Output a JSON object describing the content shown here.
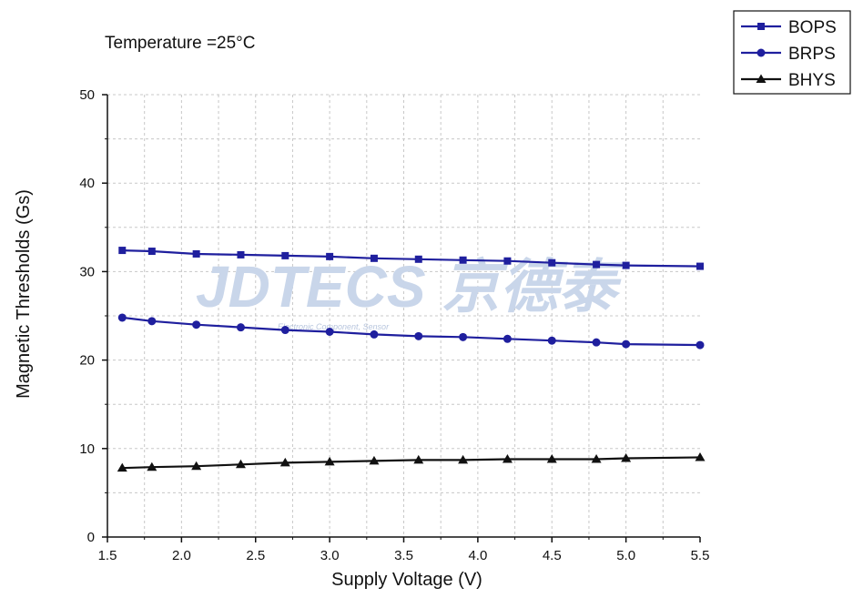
{
  "chart_data": {
    "type": "line",
    "annotation": "Temperature =25°C",
    "xlabel": "Supply Voltage (V)",
    "ylabel": "Magnetic Thresholds (Gs)",
    "xlim": [
      1.5,
      5.5
    ],
    "ylim": [
      0,
      50
    ],
    "xticks": [
      "1.5",
      "2.0",
      "2.5",
      "3.0",
      "3.5",
      "4.0",
      "4.5",
      "5.0",
      "5.5"
    ],
    "yticks": [
      "0",
      "10",
      "20",
      "30",
      "40",
      "50"
    ],
    "grid": true,
    "legend_position": "top-right",
    "x": [
      1.6,
      1.8,
      2.1,
      2.4,
      2.7,
      3.0,
      3.3,
      3.6,
      3.9,
      4.2,
      4.5,
      4.8,
      5.0,
      5.5
    ],
    "series": [
      {
        "name": "BOPS",
        "marker": "square",
        "color": "#1f1f9e",
        "values": [
          32.4,
          32.3,
          32.0,
          31.9,
          31.8,
          31.7,
          31.5,
          31.4,
          31.3,
          31.2,
          31.0,
          30.8,
          30.7,
          30.6
        ]
      },
      {
        "name": "BRPS",
        "marker": "circle",
        "color": "#1f1f9e",
        "values": [
          24.8,
          24.4,
          24.0,
          23.7,
          23.4,
          23.2,
          22.9,
          22.7,
          22.6,
          22.4,
          22.2,
          22.0,
          21.8,
          21.7
        ]
      },
      {
        "name": "BHYS",
        "marker": "triangle",
        "color": "#111111",
        "values": [
          7.8,
          7.9,
          8.0,
          8.2,
          8.4,
          8.5,
          8.6,
          8.7,
          8.7,
          8.8,
          8.8,
          8.8,
          8.9,
          9.0
        ]
      }
    ]
  },
  "watermark": {
    "text": "JDTECS 京德泰",
    "subtext": "Electronic Component, Sensor"
  }
}
